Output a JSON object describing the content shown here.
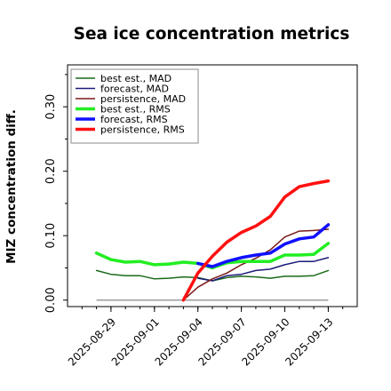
{
  "chart_data": {
    "type": "line",
    "title": "Sea ice concentration metrics",
    "ylabel": "MIZ concentration diff.",
    "xlabel": "",
    "ylim": [
      -0.01,
      0.365
    ],
    "xlim": [
      "2025-08-26",
      "2025-09-15"
    ],
    "yticks": [
      0.0,
      0.1,
      0.2,
      0.3
    ],
    "ytick_labels": [
      "0.00",
      "0.10",
      "0.20",
      "0.30"
    ],
    "xticks": [
      "2025-08-29",
      "2025-09-01",
      "2025-09-04",
      "2025-09-07",
      "2025-09-10",
      "2025-09-13"
    ],
    "xtick_labels": [
      "2025-08-29",
      "2025-09-01",
      "2025-09-04",
      "2025-09-07",
      "2025-09-10",
      "2025-09-13"
    ],
    "highlight_xtick": "2025-09-04",
    "highlight_color": "#2ca02c",
    "grid": false,
    "legend_position": "top-left",
    "zero_line_color": "#888888",
    "series": [
      {
        "name": "best est., MAD",
        "color": "#1a6a1a",
        "width": 1.5,
        "x": [
          "2025-08-28",
          "2025-08-29",
          "2025-08-30",
          "2025-08-31",
          "2025-09-01",
          "2025-09-02",
          "2025-09-03",
          "2025-09-04",
          "2025-09-05",
          "2025-09-06",
          "2025-09-07",
          "2025-09-08",
          "2025-09-09",
          "2025-09-10",
          "2025-09-11",
          "2025-09-12",
          "2025-09-13"
        ],
        "values": [
          0.046,
          0.04,
          0.038,
          0.038,
          0.033,
          0.034,
          0.036,
          0.035,
          0.03,
          0.035,
          0.037,
          0.036,
          0.034,
          0.037,
          0.037,
          0.038,
          0.046
        ]
      },
      {
        "name": "forecast,  MAD",
        "color": "#1a1a7a",
        "width": 1.5,
        "x": [
          "2025-09-04",
          "2025-09-05",
          "2025-09-06",
          "2025-09-07",
          "2025-09-08",
          "2025-09-09",
          "2025-09-10",
          "2025-09-11",
          "2025-09-12",
          "2025-09-13"
        ],
        "values": [
          0.034,
          0.03,
          0.038,
          0.04,
          0.046,
          0.048,
          0.055,
          0.06,
          0.06,
          0.066
        ]
      },
      {
        "name": "persistence, MAD",
        "color": "#7a1a1a",
        "width": 1.5,
        "x": [
          "2025-09-03",
          "2025-09-04",
          "2025-09-05",
          "2025-09-06",
          "2025-09-07",
          "2025-09-08",
          "2025-09-09",
          "2025-09-10",
          "2025-09-11",
          "2025-09-12",
          "2025-09-13"
        ],
        "values": [
          0.0,
          0.02,
          0.033,
          0.042,
          0.055,
          0.065,
          0.078,
          0.098,
          0.107,
          0.108,
          0.11
        ]
      },
      {
        "name": "best est., RMS",
        "color": "#22ee22",
        "width": 3.5,
        "x": [
          "2025-08-28",
          "2025-08-29",
          "2025-08-30",
          "2025-08-31",
          "2025-09-01",
          "2025-09-02",
          "2025-09-03",
          "2025-09-04",
          "2025-09-05",
          "2025-09-06",
          "2025-09-07",
          "2025-09-08",
          "2025-09-09",
          "2025-09-10",
          "2025-09-11",
          "2025-09-12",
          "2025-09-13"
        ],
        "values": [
          0.073,
          0.063,
          0.059,
          0.06,
          0.055,
          0.056,
          0.059,
          0.057,
          0.05,
          0.058,
          0.06,
          0.06,
          0.06,
          0.07,
          0.07,
          0.071,
          0.088
        ]
      },
      {
        "name": "forecast,  RMS",
        "color": "#1010ff",
        "width": 3.5,
        "x": [
          "2025-09-04",
          "2025-09-05",
          "2025-09-06",
          "2025-09-07",
          "2025-09-08",
          "2025-09-09",
          "2025-09-10",
          "2025-09-11",
          "2025-09-12",
          "2025-09-13"
        ],
        "values": [
          0.057,
          0.052,
          0.06,
          0.066,
          0.07,
          0.073,
          0.087,
          0.095,
          0.098,
          0.117
        ]
      },
      {
        "name": "persistence, RMS",
        "color": "#ff1010",
        "width": 3.5,
        "x": [
          "2025-09-03",
          "2025-09-04",
          "2025-09-05",
          "2025-09-06",
          "2025-09-07",
          "2025-09-08",
          "2025-09-09",
          "2025-09-10",
          "2025-09-11",
          "2025-09-12",
          "2025-09-13"
        ],
        "values": [
          0.0,
          0.042,
          0.068,
          0.09,
          0.105,
          0.115,
          0.13,
          0.16,
          0.176,
          0.181,
          0.185
        ]
      }
    ]
  }
}
